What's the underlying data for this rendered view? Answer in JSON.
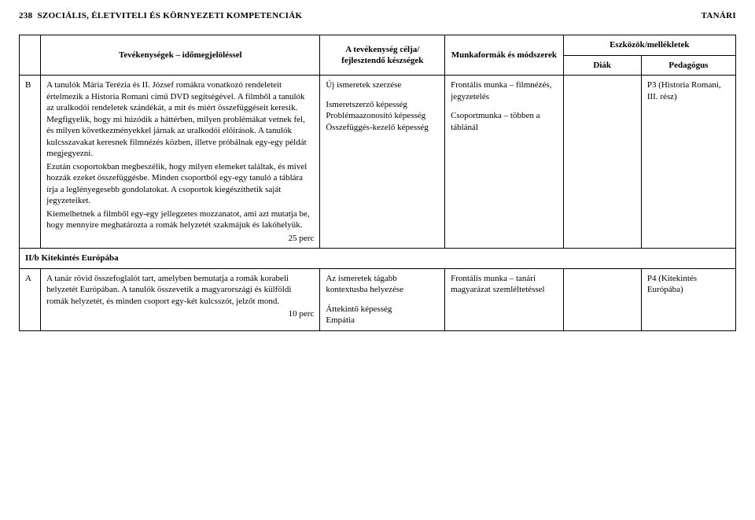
{
  "header": {
    "page_number": "238",
    "title_left": "SZOCIÁLIS, ÉLETVITELI ÉS KÖRNYEZETI KOMPETENCIÁK",
    "title_right": "TANÁRI"
  },
  "table": {
    "columns": {
      "id": "",
      "activities": "Tevékenységek – időmegjelöléssel",
      "goal": "A tevékenység célja/ fejlesztendő készségek",
      "forms": "Munkaformák és módszerek",
      "tools_group": "Eszközök/mellékletek",
      "diak": "Diák",
      "pedagogus": "Pedagógus"
    },
    "row_b": {
      "id": "B",
      "activity_p1": "A tanulók Mária Terézia és II. József romákra vonatkozó rendeleteit értelmezik a Historia Romani című DVD segítségével. A filmből a tanulók az uralkodói rendeletek szándékát, a mit és miért összefüggéseit keresik. Megfigyelik, hogy mi húzódik a háttérben, milyen problémákat vetnek fel, és milyen következményekkel járnak az uralkodói előírások. A tanulók kulcsszavakat keresnek filmnézés közben, illetve próbálnak egy-egy példát megjegyezni.",
      "activity_p2": "Ezután csoportokban megbeszélik, hogy milyen elemeket találtak, és mivel hozzák ezeket összefüggésbe. Minden csoportból egy-egy tanuló a táblára írja a leglényegesebb gondolatokat. A csoportok kiegészíthetik saját jegyzeteiket.",
      "activity_p3": "Kiemelhetnek a filmből egy-egy jellegzetes mozzanatot, ami azt mutatja be, hogy mennyire meghatározta a romák helyzetét szakmájuk és lakóhelyük.",
      "time": "25 perc",
      "goal_l1": "Új ismeretek szerzése",
      "goal_l2": "Ismeretszerző képesség",
      "goal_l3": "Problémaazonosító képesség",
      "goal_l4": "Összefüggés-kezelő képesség",
      "form_l1": "Frontális munka – filmnézés, jegyzetelés",
      "form_l2": "Csoportmunka – többen a táblánál",
      "diak": "",
      "pedagogus": "P3 (Historia Romani, III. rész)"
    },
    "section": {
      "label": "II/b Kitekintés Európába"
    },
    "row_a": {
      "id": "A",
      "activity_p1": "A tanár rövid összefoglalót tart, amelyben bemutatja a romák korabeli helyzetét Európában. A tanulók összevetik a magyarországi és külföldi romák helyzetét, és minden csoport egy-két kulcsszót, jelzőt mond.",
      "time": "10 perc",
      "goal_l1": "Az ismeretek tágabb kontextusba helyezése",
      "goal_l2": "Áttekintő képesség",
      "goal_l3": "Empátia",
      "form_l1": "Frontális munka – tanári magyarázat szemléltetéssel",
      "diak": "",
      "pedagogus": "P4 (Kitekintés Európába)"
    }
  }
}
